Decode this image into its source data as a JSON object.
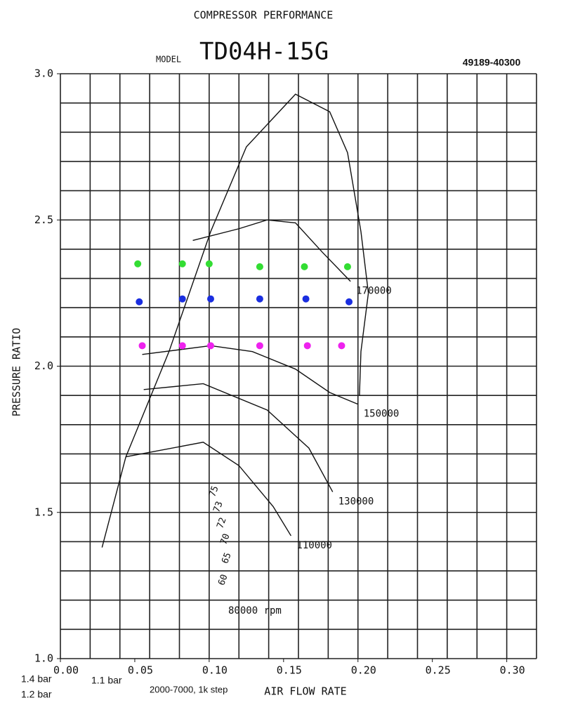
{
  "chart_data": {
    "type": "scatter",
    "title": "COMPRESSOR PERFORMANCE",
    "model_label": "MODEL",
    "model": "TD04H-15G",
    "part_number": "49189-40300",
    "x_label": "AIR FLOW RATE",
    "y_label": "PRESSURE RATIO",
    "note": "2000-7000, 1k step",
    "xlim": [
      0,
      0.32
    ],
    "ylim": [
      1.0,
      3.0
    ],
    "xticks": [
      {
        "value": 0,
        "label": "0.00"
      },
      {
        "value": 0.05,
        "label": "0.05"
      },
      {
        "value": 0.1,
        "label": "0.10"
      },
      {
        "value": 0.15,
        "label": "0.15"
      },
      {
        "value": 0.2,
        "label": "0.20"
      },
      {
        "value": 0.25,
        "label": "0.25"
      },
      {
        "value": 0.3,
        "label": "0.30"
      }
    ],
    "yticks": [
      {
        "value": 1,
        "label": "1.0"
      },
      1.5,
      {
        "value": 2,
        "label": "2.0"
      },
      2.5,
      {
        "value": 3,
        "label": "3.0"
      }
    ],
    "xgrid": [
      0,
      0.02,
      0.04,
      0.06,
      0.08,
      0.1,
      0.12,
      0.14,
      0.16,
      0.18,
      0.2,
      0.22,
      0.24,
      0.26,
      0.28,
      0.3,
      0.32
    ],
    "ygrid": [
      1.0,
      1.1,
      1.2,
      1.3,
      1.4,
      1.5,
      1.6,
      1.7,
      1.8,
      1.9,
      2.0,
      2.1,
      2.2,
      2.3,
      2.4,
      2.5,
      2.6,
      2.7,
      2.8,
      2.9,
      3.0
    ],
    "series": [
      {
        "name": "1.4 bar",
        "color": "#33dd33",
        "x": [
          0.052,
          0.082,
          0.1,
          0.134,
          0.164,
          0.193
        ],
        "y": [
          2.35,
          2.35,
          2.35,
          2.34,
          2.34,
          2.34
        ]
      },
      {
        "name": "1.2 bar",
        "color": "#1a2ee0",
        "x": [
          0.053,
          0.082,
          0.101,
          0.134,
          0.165,
          0.194
        ],
        "y": [
          2.22,
          2.23,
          2.23,
          2.23,
          2.23,
          2.22
        ]
      },
      {
        "name": "1.1 bar",
        "color": "#ee22ee",
        "x": [
          0.055,
          0.082,
          0.101,
          0.134,
          0.166,
          0.189
        ],
        "y": [
          2.07,
          2.07,
          2.07,
          2.07,
          2.07,
          2.07
        ]
      }
    ],
    "surge_line": {
      "x": [
        0.028,
        0.044,
        0.073,
        0.101,
        0.125,
        0.158,
        0.181,
        0.193,
        0.202,
        0.207,
        0.202,
        0.201
      ],
      "y": [
        1.38,
        1.69,
        2.05,
        2.46,
        2.75,
        2.93,
        2.87,
        2.73,
        2.46,
        2.25,
        2.05,
        1.9
      ]
    },
    "speed_lines": [
      {
        "name": "170000",
        "x": [
          0.089,
          0.12,
          0.139,
          0.158,
          0.176,
          0.195
        ],
        "y": [
          2.43,
          2.47,
          2.5,
          2.49,
          2.39,
          2.29
        ]
      },
      {
        "name": "150000",
        "x": [
          0.055,
          0.101,
          0.129,
          0.158,
          0.181,
          0.2
        ],
        "y": [
          2.04,
          2.07,
          2.05,
          1.99,
          1.91,
          1.87
        ]
      },
      {
        "name": "130000",
        "x": [
          0.056,
          0.096,
          0.139,
          0.167,
          0.183
        ],
        "y": [
          1.92,
          1.94,
          1.85,
          1.72,
          1.57
        ]
      },
      {
        "name": "110000",
        "x": [
          0.044,
          0.096,
          0.12,
          0.143,
          0.155
        ],
        "y": [
          1.69,
          1.74,
          1.66,
          1.52,
          1.42
        ]
      }
    ],
    "rpm_label": "80000 rpm",
    "efficiency_labels": [
      "75",
      "73",
      "72",
      "70",
      "65",
      "60"
    ]
  }
}
